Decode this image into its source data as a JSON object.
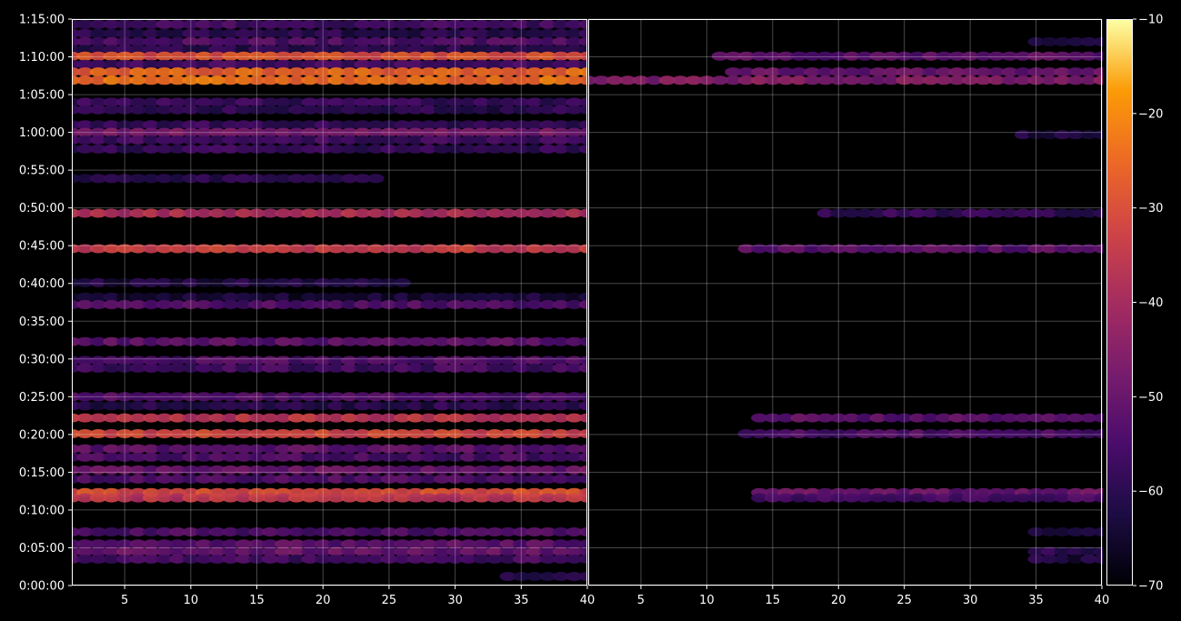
{
  "chart_data": {
    "type": "heatmap",
    "title": "",
    "xlabel": "",
    "ylabel": "",
    "colormap": "inferno",
    "background": "#000000",
    "grid": true,
    "y_ticks": [
      "0:00:00",
      "0:05:00",
      "0:10:00",
      "0:15:00",
      "0:20:00",
      "0:25:00",
      "0:30:00",
      "0:35:00",
      "0:40:00",
      "0:45:00",
      "0:50:00",
      "0:55:00",
      "1:00:00",
      "1:05:00",
      "1:10:00",
      "1:15:00"
    ],
    "y_range_minutes": [
      0,
      75
    ],
    "colorbar": {
      "range": [
        -70,
        -10
      ],
      "ticks": [
        "-10",
        "-20",
        "-30",
        "-40",
        "-50",
        "-60",
        "-70"
      ]
    },
    "panels": [
      {
        "x_range": [
          1,
          40
        ],
        "x_ticks": [
          "5",
          "10",
          "15",
          "20",
          "25",
          "30",
          "35",
          "40"
        ],
        "bands": [
          {
            "t": 74.3,
            "xmin": 1,
            "xmax": 40,
            "level": -56
          },
          {
            "t": 73.1,
            "xmin": 1,
            "xmax": 40,
            "level": -60
          },
          {
            "t": 72.0,
            "xmin": 1,
            "xmax": 40,
            "level": -54
          },
          {
            "t": 71.0,
            "xmin": 1,
            "xmax": 40,
            "level": -60
          },
          {
            "t": 70.1,
            "xmin": 1,
            "xmax": 40,
            "level": -30
          },
          {
            "t": 69.0,
            "xmin": 1,
            "xmax": 40,
            "level": -56
          },
          {
            "t": 68.0,
            "xmin": 1,
            "xmax": 40,
            "level": -26
          },
          {
            "t": 66.9,
            "xmin": 1,
            "xmax": 40,
            "level": -24
          },
          {
            "t": 64.0,
            "xmin": 1,
            "xmax": 40,
            "level": -58
          },
          {
            "t": 63.0,
            "xmin": 1,
            "xmax": 40,
            "level": -60
          },
          {
            "t": 61.0,
            "xmin": 1,
            "xmax": 40,
            "level": -58
          },
          {
            "t": 60.0,
            "xmin": 1,
            "xmax": 40,
            "level": -48
          },
          {
            "t": 59.0,
            "xmin": 1,
            "xmax": 40,
            "level": -56
          },
          {
            "t": 57.8,
            "xmin": 1,
            "xmax": 40,
            "level": -58
          },
          {
            "t": 53.9,
            "xmin": 1,
            "xmax": 24,
            "level": -60
          },
          {
            "t": 49.3,
            "xmin": 1,
            "xmax": 40,
            "level": -38
          },
          {
            "t": 44.6,
            "xmin": 1,
            "xmax": 40,
            "level": -34
          },
          {
            "t": 40.1,
            "xmin": 1,
            "xmax": 26,
            "level": -62
          },
          {
            "t": 38.2,
            "xmin": 1,
            "xmax": 40,
            "level": -64
          },
          {
            "t": 37.2,
            "xmin": 1,
            "xmax": 40,
            "level": -54
          },
          {
            "t": 32.3,
            "xmin": 1,
            "xmax": 40,
            "level": -52
          },
          {
            "t": 29.8,
            "xmin": 1,
            "xmax": 40,
            "level": -54
          },
          {
            "t": 28.8,
            "xmin": 1,
            "xmax": 40,
            "level": -56
          },
          {
            "t": 25.0,
            "xmin": 1,
            "xmax": 40,
            "level": -54
          },
          {
            "t": 23.8,
            "xmin": 1,
            "xmax": 40,
            "level": -60
          },
          {
            "t": 22.2,
            "xmin": 1,
            "xmax": 40,
            "level": -36
          },
          {
            "t": 20.1,
            "xmin": 1,
            "xmax": 40,
            "level": -32
          },
          {
            "t": 18.1,
            "xmin": 1,
            "xmax": 40,
            "level": -52
          },
          {
            "t": 17.0,
            "xmin": 1,
            "xmax": 40,
            "level": -55
          },
          {
            "t": 15.3,
            "xmin": 1,
            "xmax": 40,
            "level": -50
          },
          {
            "t": 14.1,
            "xmin": 1,
            "xmax": 40,
            "level": -54
          },
          {
            "t": 12.3,
            "xmin": 1,
            "xmax": 40,
            "level": -30
          },
          {
            "t": 11.6,
            "xmin": 1,
            "xmax": 40,
            "level": -36
          },
          {
            "t": 7.1,
            "xmin": 1,
            "xmax": 40,
            "level": -54
          },
          {
            "t": 5.5,
            "xmin": 1,
            "xmax": 40,
            "level": -52
          },
          {
            "t": 4.5,
            "xmin": 1,
            "xmax": 40,
            "level": -50
          },
          {
            "t": 3.5,
            "xmin": 1,
            "xmax": 40,
            "level": -56
          },
          {
            "t": 1.2,
            "xmin": 34,
            "xmax": 40,
            "level": -62
          }
        ]
      },
      {
        "x_range": [
          1,
          40
        ],
        "x_ticks": [
          "5",
          "10",
          "15",
          "20",
          "25",
          "30",
          "35",
          "40"
        ],
        "bands": [
          {
            "t": 72.0,
            "xmin": 35,
            "xmax": 40,
            "level": -64
          },
          {
            "t": 70.1,
            "xmin": 11,
            "xmax": 40,
            "level": -52
          },
          {
            "t": 68.0,
            "xmin": 12,
            "xmax": 40,
            "level": -50
          },
          {
            "t": 66.9,
            "xmin": 1,
            "xmax": 40,
            "level": -46
          },
          {
            "t": 59.7,
            "xmin": 34,
            "xmax": 40,
            "level": -62
          },
          {
            "t": 49.3,
            "xmin": 19,
            "xmax": 40,
            "level": -58
          },
          {
            "t": 44.6,
            "xmin": 13,
            "xmax": 40,
            "level": -52
          },
          {
            "t": 22.2,
            "xmin": 14,
            "xmax": 40,
            "level": -52
          },
          {
            "t": 20.1,
            "xmin": 13,
            "xmax": 40,
            "level": -54
          },
          {
            "t": 12.3,
            "xmin": 14,
            "xmax": 40,
            "level": -50
          },
          {
            "t": 11.6,
            "xmin": 14,
            "xmax": 40,
            "level": -56
          },
          {
            "t": 7.1,
            "xmin": 35,
            "xmax": 40,
            "level": -62
          },
          {
            "t": 4.5,
            "xmin": 35,
            "xmax": 40,
            "level": -60
          },
          {
            "t": 3.5,
            "xmin": 35,
            "xmax": 40,
            "level": -62
          }
        ]
      }
    ]
  }
}
